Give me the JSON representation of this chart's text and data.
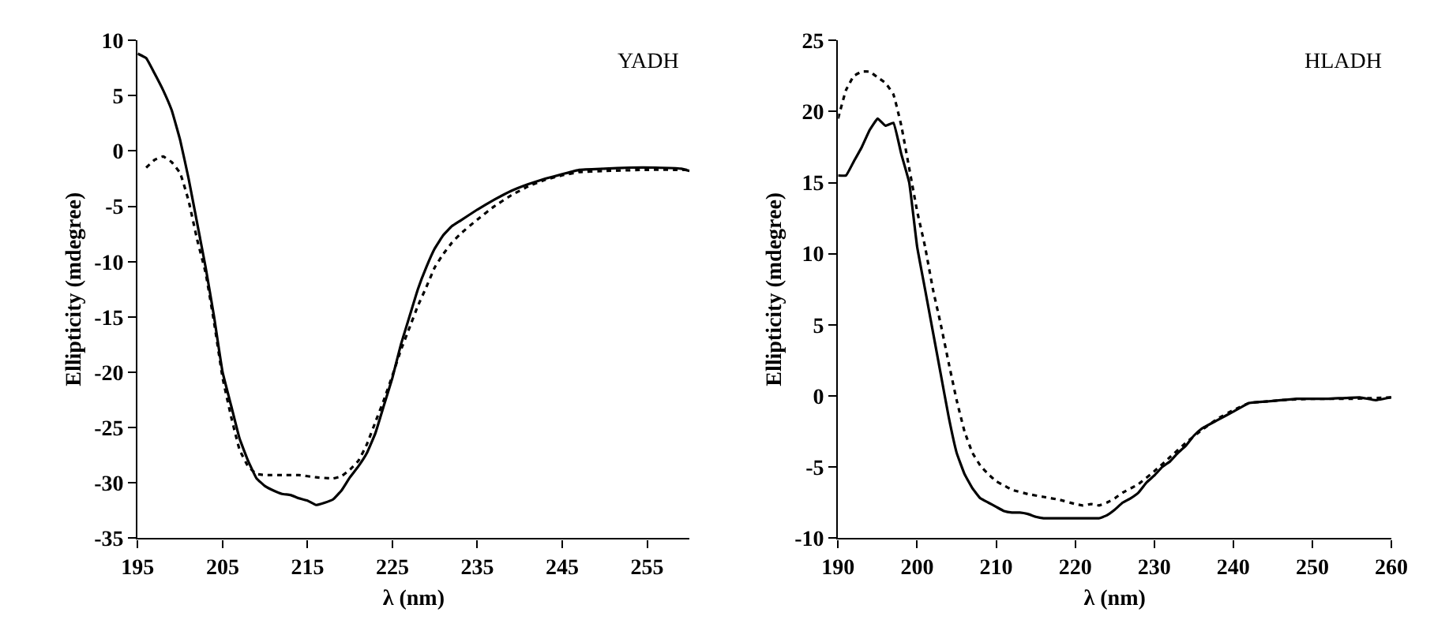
{
  "chart_data": [
    {
      "type": "line",
      "xlabel": "λ (nm)",
      "ylabel": "Ellipticity (mdegree)",
      "annotations": [
        "YADH"
      ],
      "xlim": [
        195,
        260
      ],
      "xticks": [
        195,
        205,
        215,
        225,
        235,
        245,
        255
      ],
      "ylim": [
        -35,
        10
      ],
      "yticks": [
        -35,
        -30,
        -25,
        -20,
        -15,
        -10,
        -5,
        0,
        5,
        10
      ],
      "series": [
        {
          "color": "#000000",
          "line_style": "solid",
          "x": [
            195,
            196,
            197,
            198,
            199,
            200,
            201,
            202,
            203,
            204,
            205,
            206,
            207,
            208,
            209,
            210,
            211,
            212,
            213,
            214,
            215,
            216,
            217,
            218,
            219,
            220,
            221,
            222,
            223,
            224,
            225,
            226,
            227,
            228,
            229,
            230,
            231,
            232,
            233,
            235,
            237,
            239,
            241,
            243,
            245,
            247,
            250,
            253,
            256,
            259,
            260
          ],
          "values": [
            8.8,
            8.4,
            7,
            5.5,
            3.7,
            1,
            -2.5,
            -6.5,
            -10.5,
            -15,
            -20,
            -23,
            -26,
            -28,
            -29.6,
            -30.3,
            -30.7,
            -31,
            -31.1,
            -31.4,
            -31.6,
            -32,
            -31.8,
            -31.5,
            -30.7,
            -29.5,
            -28.5,
            -27.3,
            -25.5,
            -23,
            -20.5,
            -17.5,
            -15,
            -12.5,
            -10.5,
            -8.8,
            -7.6,
            -6.8,
            -6.3,
            -5.3,
            -4.4,
            -3.6,
            -3,
            -2.5,
            -2.1,
            -1.7,
            -1.6,
            -1.5,
            -1.5,
            -1.6,
            -1.8
          ]
        },
        {
          "color": "#000000",
          "line_style": "dotted",
          "x": [
            196,
            197,
            198,
            199,
            200,
            201,
            202,
            203,
            204,
            205,
            206,
            207,
            208,
            209,
            210,
            212,
            214,
            216,
            218,
            219,
            220,
            221,
            222,
            223,
            224,
            225,
            226,
            227,
            228,
            229,
            230,
            231,
            232,
            233,
            235,
            237,
            239,
            241,
            243,
            245,
            247,
            250,
            255,
            260
          ],
          "values": [
            -1.5,
            -0.8,
            -0.5,
            -1,
            -2,
            -4.5,
            -8,
            -11,
            -15.5,
            -20.5,
            -24,
            -27,
            -28.5,
            -29.2,
            -29.3,
            -29.3,
            -29.3,
            -29.5,
            -29.6,
            -29.4,
            -28.8,
            -28,
            -26.5,
            -24.5,
            -22.5,
            -20.3,
            -18,
            -16,
            -14,
            -12.3,
            -10.5,
            -9.3,
            -8.3,
            -7.5,
            -6.2,
            -5,
            -4,
            -3.2,
            -2.6,
            -2.2,
            -1.9,
            -1.8,
            -1.7,
            -1.7
          ]
        }
      ]
    },
    {
      "type": "line",
      "xlabel": "λ (nm)",
      "ylabel": "Ellipticity (mdegree)",
      "annotations": [
        "HLADH"
      ],
      "xlim": [
        190,
        260
      ],
      "xticks": [
        190,
        200,
        210,
        220,
        230,
        240,
        250,
        260
      ],
      "ylim": [
        -10,
        25
      ],
      "yticks": [
        -10,
        -5,
        0,
        5,
        10,
        15,
        20,
        25
      ],
      "series": [
        {
          "color": "#000000",
          "line_style": "solid",
          "x": [
            190,
            191,
            192,
            193,
            194,
            195,
            196,
            197,
            198,
            199,
            200,
            201,
            202,
            203,
            204,
            205,
            206,
            207,
            208,
            209,
            210,
            211,
            212,
            213,
            214,
            215,
            216,
            218,
            220,
            222,
            223,
            224,
            225,
            226,
            227,
            228,
            229,
            230,
            231,
            232,
            233,
            234,
            235,
            236,
            238,
            240,
            242,
            244,
            246,
            248,
            252,
            256,
            258,
            260
          ],
          "values": [
            15.5,
            15.5,
            16.5,
            17.5,
            18.7,
            19.5,
            19,
            19.2,
            17,
            15,
            10.5,
            7.5,
            4.5,
            1.5,
            -1.5,
            -4,
            -5.5,
            -6.5,
            -7.2,
            -7.5,
            -7.8,
            -8.1,
            -8.2,
            -8.2,
            -8.3,
            -8.5,
            -8.6,
            -8.6,
            -8.6,
            -8.6,
            -8.6,
            -8.4,
            -8,
            -7.5,
            -7.2,
            -6.8,
            -6.1,
            -5.6,
            -5,
            -4.6,
            -4,
            -3.5,
            -2.8,
            -2.3,
            -1.7,
            -1.1,
            -0.5,
            -0.4,
            -0.3,
            -0.2,
            -0.2,
            -0.1,
            -0.3,
            -0.1
          ]
        },
        {
          "color": "#000000",
          "line_style": "dotted",
          "x": [
            190,
            191,
            192,
            193,
            194,
            195,
            196,
            197,
            198,
            199,
            200,
            201,
            202,
            203,
            204,
            205,
            206,
            207,
            208,
            209,
            210,
            211,
            212,
            214,
            216,
            218,
            220,
            221,
            222,
            223,
            224,
            225,
            226,
            228,
            230,
            232,
            234,
            236,
            238,
            240,
            242,
            244,
            246,
            250,
            255,
            260
          ],
          "values": [
            19.5,
            21.5,
            22.5,
            22.8,
            22.8,
            22.4,
            22,
            21.2,
            19,
            16,
            13,
            10.5,
            7.5,
            5,
            2.3,
            -0.3,
            -2.5,
            -4,
            -4.9,
            -5.5,
            -6,
            -6.3,
            -6.6,
            -6.9,
            -7.1,
            -7.3,
            -7.6,
            -7.7,
            -7.6,
            -7.7,
            -7.5,
            -7.2,
            -6.8,
            -6.2,
            -5.3,
            -4.3,
            -3.3,
            -2.4,
            -1.6,
            -1,
            -0.5,
            -0.4,
            -0.3,
            -0.2,
            -0.2,
            -0.1
          ]
        }
      ]
    }
  ]
}
